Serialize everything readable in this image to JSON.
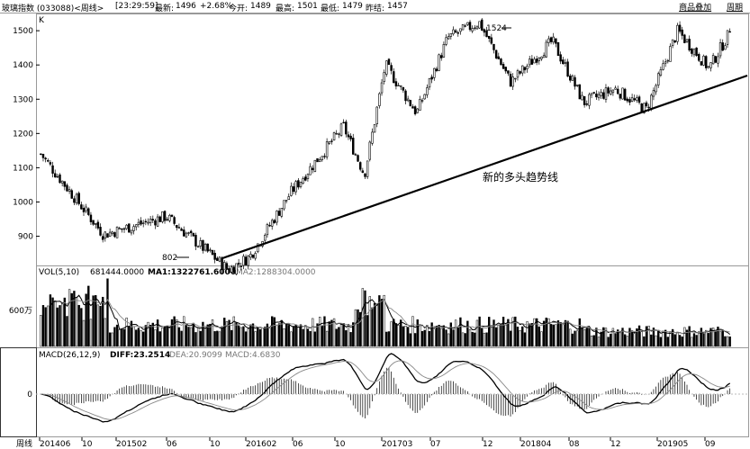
{
  "header": {
    "instrument": "玻璃指数 (033088)<周线>",
    "time": "[23:29:59]",
    "latest_label": "最新:",
    "latest": "1496",
    "change": "+2.68%",
    "open_label": "今开:",
    "open": "1489",
    "high_label": "最高:",
    "high": "1501",
    "low_label": "最低:",
    "low": "1479",
    "prev_label": "昨结:",
    "prev": "1457",
    "overlay_button": "商品叠加",
    "period_button": "周期"
  },
  "chart_data": [
    {
      "type": "candlestick",
      "panel_label": "K",
      "ylim": [
        820,
        1545
      ],
      "yticks": [
        "900",
        "1000",
        "1100",
        "1200",
        "1300",
        "1400",
        "1500"
      ],
      "key_points": [
        {
          "date": "2014-06",
          "close": 1140
        },
        {
          "date": "2014-12",
          "close": 905
        },
        {
          "date": "2015-06",
          "close": 958
        },
        {
          "date": "2015-12",
          "close": 802
        },
        {
          "date": "2016-02",
          "close": 840
        },
        {
          "date": "2016-06",
          "close": 1030
        },
        {
          "date": "2016-11",
          "close": 1220
        },
        {
          "date": "2017-01",
          "close": 1080
        },
        {
          "date": "2017-03",
          "close": 1400
        },
        {
          "date": "2017-06",
          "close": 1260
        },
        {
          "date": "2017-09",
          "close": 1480
        },
        {
          "date": "2017-12",
          "close": 1524
        },
        {
          "date": "2018-03",
          "close": 1350
        },
        {
          "date": "2018-07",
          "close": 1470
        },
        {
          "date": "2018-10",
          "close": 1290
        },
        {
          "date": "2019-01",
          "close": 1330
        },
        {
          "date": "2019-04",
          "close": 1270
        },
        {
          "date": "2019-07",
          "close": 1500
        },
        {
          "date": "2019-10",
          "close": 1390
        },
        {
          "date": "2019-12",
          "close": 1496
        }
      ],
      "annotations": {
        "low": "802",
        "high": "1524",
        "trend_label": "新的多头趋势线"
      }
    },
    {
      "type": "bar",
      "panel_label": "VOL(5,10)",
      "vol_value": "681444.0000",
      "ma1_label": "MA1:1322761.6000",
      "ma2_label": "MA2:1288304.0000",
      "ytick": "600万"
    },
    {
      "type": "line",
      "panel_label": "MACD(26,12,9)",
      "diff_label": "DIFF:23.2514",
      "dea_label": "DEA:20.9099",
      "macd_label": "MACD:4.6830",
      "ytick": "0"
    }
  ],
  "xaxis": {
    "unit_label": "周线",
    "ticks": [
      "201406",
      "10",
      "201502",
      "06",
      "10",
      "201602",
      "06",
      "10",
      "201703",
      "07",
      "12",
      "201804",
      "08",
      "12",
      "201905",
      "09"
    ]
  },
  "colors": {
    "candle": "#000000",
    "ma1": "#000000",
    "ma2": "#888888",
    "grid": "#cccccc"
  }
}
